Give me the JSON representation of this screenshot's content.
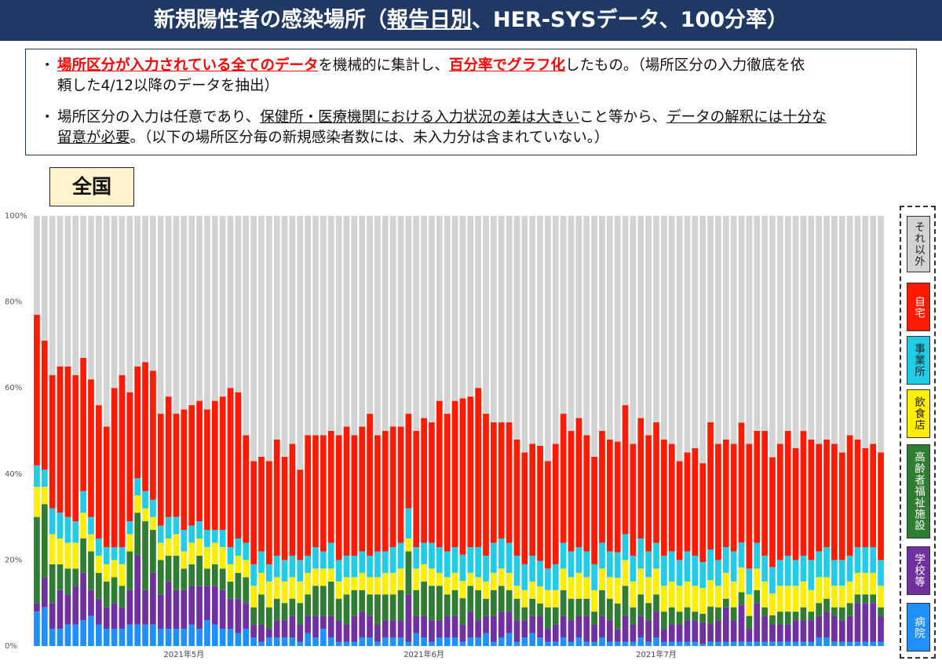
{
  "header": {
    "title_parts": [
      "新規陽性者の感染場所（",
      "報告日別",
      "、HER-SYSデータ、100分率）"
    ]
  },
  "notes": {
    "bullet": "・",
    "line1": [
      "場所区分が入力されている全てのデータ",
      "を機械的に集計し、",
      "百分率でグラフ化",
      "したもの。（場所区分の入力徹底を依"
    ],
    "line2": "頼した4/12以降のデータを抽出）",
    "line3": [
      "場所区分の入力は任意であり、",
      "保健所・医療機関における入力状況の差は大きい",
      "こと等から、",
      "データの解釈には十分な"
    ],
    "line4": [
      "留意が必要",
      "。（以下の場所区分毎の新規感染者数には、未入力分は含まれていない。）"
    ]
  },
  "region_label": "全国",
  "chart_data": {
    "type": "bar",
    "stacked": true,
    "ylim": [
      0,
      100
    ],
    "y_ticks": [
      "0%",
      "20%",
      "40%",
      "60%",
      "80%",
      "100%"
    ],
    "x_tick_labels": [
      {
        "label": "2021年5月",
        "index": 19
      },
      {
        "label": "2021年6月",
        "index": 50
      },
      {
        "label": "2021年7月",
        "index": 80
      }
    ],
    "grid": false,
    "legend_position": "right",
    "series": [
      {
        "name": "病院",
        "color": "#1e90ff",
        "values": [
          8,
          9,
          4,
          4,
          5,
          5,
          6,
          7,
          5,
          4,
          4,
          4,
          5,
          5,
          5,
          5,
          4,
          4,
          4,
          4,
          5,
          4,
          6,
          5,
          4,
          4,
          3,
          4,
          2,
          1,
          2,
          2,
          2,
          2,
          1,
          3,
          2,
          4,
          2,
          1,
          1,
          1,
          2,
          2,
          1,
          2,
          2,
          2,
          1,
          3,
          2,
          1,
          2,
          2,
          2,
          1,
          2,
          2,
          3,
          1,
          2,
          3,
          1,
          2,
          3,
          2,
          1,
          1,
          2,
          1,
          2,
          1,
          1,
          2,
          1,
          1,
          1,
          1,
          2,
          1,
          2,
          1,
          1,
          1,
          1,
          1,
          0.5,
          1,
          1,
          1,
          1,
          1,
          1,
          1,
          1,
          1,
          1,
          1,
          1,
          1,
          1,
          2,
          2,
          1,
          1,
          1,
          1,
          1,
          1,
          1
        ]
      },
      {
        "name": "学校等",
        "color": "#7030a0",
        "values": [
          2,
          7,
          6,
          9,
          7,
          9,
          11,
          6,
          6,
          5,
          6,
          5,
          8,
          16,
          8,
          12,
          8,
          11,
          9,
          9,
          9,
          10,
          8,
          9,
          9,
          7,
          8,
          6,
          3,
          4,
          2,
          4,
          4,
          5,
          4,
          4,
          5,
          3,
          5,
          5,
          4,
          6,
          6,
          5,
          4,
          4,
          4,
          4,
          11,
          4,
          5,
          5,
          4,
          5,
          5,
          4,
          6,
          4,
          4,
          6,
          6,
          5,
          5,
          4,
          4,
          5,
          3,
          4,
          5,
          5,
          5,
          6,
          4,
          5,
          5,
          3,
          6,
          4,
          5,
          5,
          6,
          3,
          4,
          4,
          5,
          5,
          5,
          4,
          5,
          8,
          5,
          9,
          3,
          9,
          6,
          4,
          4,
          4,
          5,
          5,
          5,
          5,
          6,
          6,
          5,
          6,
          9,
          9,
          9,
          6
        ]
      },
      {
        "name": "高齢者福祉施設",
        "color": "#2e7d32",
        "values": [
          20,
          17,
          9,
          6,
          6,
          4,
          8,
          9,
          6,
          6,
          6,
          5,
          9,
          10,
          16,
          10,
          8,
          6,
          8,
          5,
          5,
          7,
          4,
          5,
          5,
          4,
          6,
          6,
          4,
          7,
          5,
          5,
          4,
          4,
          5,
          5,
          7,
          7,
          8,
          5,
          7,
          6,
          5,
          5,
          7,
          6,
          6,
          7,
          10,
          6,
          8,
          8,
          8,
          5,
          6,
          6,
          6,
          7,
          4,
          6,
          6,
          5,
          5,
          3,
          4,
          3,
          5,
          4,
          6,
          5,
          4,
          4,
          3,
          6,
          5,
          6,
          7,
          4,
          5,
          4,
          4,
          4,
          4,
          3,
          3,
          2,
          2,
          4,
          3,
          2,
          3,
          3,
          3,
          3,
          2,
          2,
          3,
          3,
          2,
          3,
          2,
          3,
          3,
          2,
          3,
          3,
          2,
          2,
          2,
          2
        ]
      },
      {
        "name": "飲食店",
        "color": "#ffee00",
        "values": [
          7,
          4,
          7,
          6,
          6,
          6,
          6,
          4,
          4,
          4,
          4,
          5,
          4,
          4,
          3,
          3,
          4,
          4,
          5,
          4,
          5,
          4,
          5,
          5,
          5,
          4,
          4,
          4,
          5,
          5,
          6,
          5,
          5,
          5,
          5,
          5,
          4,
          4,
          3,
          4,
          4,
          3,
          4,
          4,
          4,
          5,
          5,
          5,
          3,
          5,
          4,
          4,
          3,
          4,
          4,
          4,
          3,
          3,
          4,
          4,
          4,
          4,
          3,
          4,
          4,
          4,
          4,
          4,
          5,
          5,
          6,
          5,
          5,
          5,
          5,
          6,
          6,
          6,
          6,
          6,
          6,
          6,
          6,
          6,
          6,
          6,
          6,
          6,
          5,
          6,
          6,
          6,
          5,
          5,
          6,
          5,
          6,
          6,
          6,
          6,
          5,
          6,
          5,
          5,
          5,
          5,
          5,
          5,
          5,
          5
        ]
      },
      {
        "name": "事業所",
        "color": "#22cce6",
        "values": [
          5,
          4,
          6,
          6,
          6,
          5,
          5,
          4,
          4,
          4,
          3,
          4,
          3,
          4,
          4,
          4,
          4,
          5,
          4,
          5,
          4,
          4,
          4,
          3,
          4,
          4,
          4,
          4,
          5,
          5,
          4,
          5,
          5,
          5,
          5,
          4,
          5,
          4,
          6,
          5,
          5,
          5,
          5,
          5,
          6,
          5,
          6,
          6,
          7,
          5,
          5,
          6,
          6,
          6,
          6,
          6,
          6,
          7,
          6,
          7,
          7,
          7,
          7,
          6,
          6,
          6,
          5,
          6,
          6,
          6,
          6,
          6,
          6,
          6,
          6,
          6,
          6,
          6,
          7,
          6,
          6,
          7,
          7,
          6,
          7,
          7,
          6,
          7,
          6,
          6,
          7,
          6,
          6,
          6,
          6,
          6,
          6,
          7,
          6,
          6,
          7,
          6,
          7,
          6,
          6,
          6,
          6,
          6,
          6,
          6
        ]
      },
      {
        "name": "自宅",
        "color": "#ff1a00",
        "values": [
          35,
          30,
          31,
          34,
          35,
          34,
          31,
          32,
          31,
          28,
          37,
          40,
          30,
          26,
          30,
          30,
          26,
          28,
          24,
          28,
          28,
          28,
          28,
          30,
          31,
          37,
          34,
          25,
          24,
          22,
          24,
          27,
          24,
          26,
          21,
          28,
          26,
          27,
          26,
          29,
          30,
          28,
          29,
          33,
          27,
          28,
          28,
          27,
          22,
          27,
          29,
          28,
          34,
          32,
          34,
          36,
          35,
          37,
          33,
          28,
          27,
          28,
          27,
          26,
          26,
          27,
          25,
          28,
          30,
          28,
          30,
          27,
          25,
          26,
          26,
          26,
          30,
          26,
          28,
          27,
          28,
          27,
          25,
          23,
          23,
          25,
          23,
          29,
          27,
          25,
          25,
          29,
          29,
          26,
          29,
          25,
          27,
          29,
          26,
          29,
          28,
          25,
          25,
          27,
          25,
          28,
          25,
          23,
          24,
          25
        ]
      },
      {
        "name": "それ以外",
        "color": "#d3d3d3",
        "values": [
          23,
          29,
          37,
          35,
          35,
          37,
          33,
          38,
          44,
          49,
          40,
          37,
          41,
          35,
          34,
          36,
          46,
          42,
          46,
          45,
          44,
          43,
          45,
          43,
          42,
          40,
          41,
          51,
          57,
          56,
          57,
          52,
          56,
          53,
          59,
          51,
          51,
          51,
          50,
          51,
          49,
          51,
          49,
          46,
          51,
          50,
          49,
          49,
          46,
          50,
          47,
          48,
          43,
          46,
          43,
          42,
          42,
          40,
          46,
          48,
          48,
          48,
          52,
          55,
          53,
          54,
          57,
          53,
          46,
          50,
          47,
          51,
          56,
          50,
          52,
          53,
          44,
          53,
          47,
          51,
          48,
          52,
          53,
          57,
          55,
          54,
          57.5,
          47,
          53,
          52,
          53,
          50,
          53,
          50,
          50,
          55,
          53,
          50,
          54,
          50,
          52,
          53,
          52,
          53,
          55,
          51,
          52,
          54,
          53,
          55
        ]
      }
    ]
  },
  "legend": {
    "items": [
      {
        "label": "それ以外",
        "color": "#d3d3d3"
      },
      {
        "label": "自宅",
        "color": "#ff1a00"
      },
      {
        "label": "事業所",
        "color": "#22cce6"
      },
      {
        "label": "飲食店",
        "color": "#ffee00"
      },
      {
        "label": "高齢者福祉施設",
        "color": "#2e7d32"
      },
      {
        "label": "学校等",
        "color": "#7030a0"
      },
      {
        "label": "病院",
        "color": "#1e90ff"
      }
    ]
  }
}
